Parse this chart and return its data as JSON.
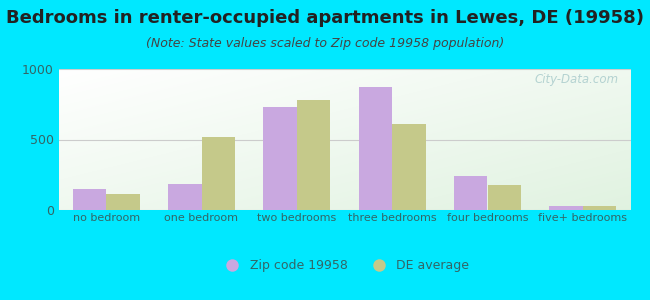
{
  "title": "Bedrooms in renter-occupied apartments in Lewes, DE (19958)",
  "subtitle": "(Note: State values scaled to Zip code 19958 population)",
  "categories": [
    "no bedroom",
    "one bedroom",
    "two bedrooms",
    "three bedrooms",
    "four bedrooms",
    "five+ bedrooms"
  ],
  "zip_values": [
    150,
    185,
    730,
    870,
    240,
    25
  ],
  "de_values": [
    115,
    520,
    780,
    610,
    175,
    30
  ],
  "zip_color": "#c9a8e0",
  "de_color": "#c5c98a",
  "background_outer": "#00e8ff",
  "ylim": [
    0,
    1000
  ],
  "yticks": [
    0,
    500,
    1000
  ],
  "title_fontsize": 13,
  "subtitle_fontsize": 9,
  "legend_zip_label": "Zip code 19958",
  "legend_de_label": "DE average",
  "watermark": "City-Data.com",
  "bar_width": 0.35,
  "grid_color": "#cccccc"
}
